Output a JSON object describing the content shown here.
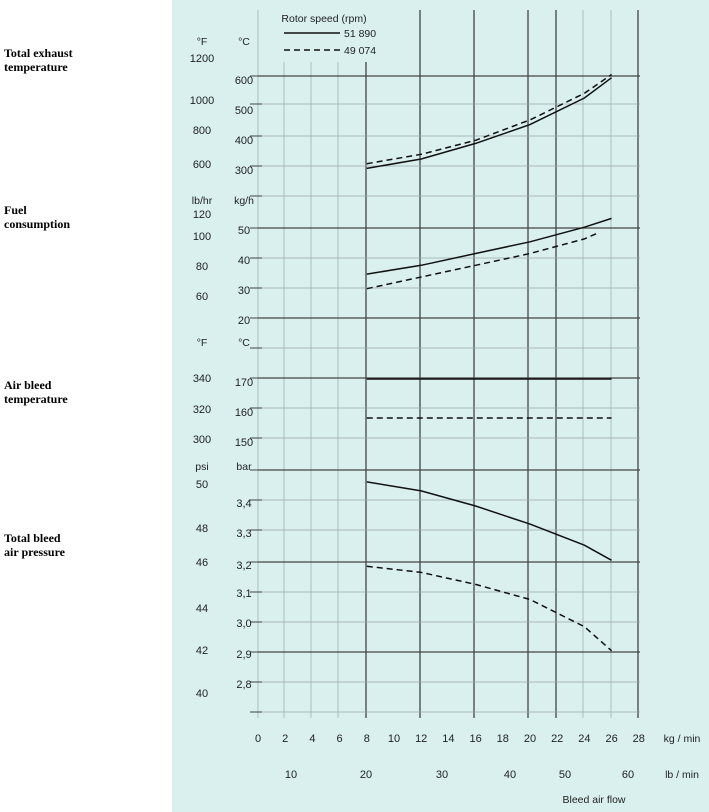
{
  "left_labels": [
    "Total exhaust\ntemperature",
    "Fuel\nconsumption",
    "Air bleed\ntemperature",
    "Total bleed\nair pressure"
  ],
  "colors": {
    "panel_bg": "#d9f0ef",
    "grid": "#444444",
    "grid_light": "#9aa8a8",
    "curve": "#111111"
  },
  "chart_data": {
    "type": "line",
    "legend": {
      "title": "Rotor speed (rpm)",
      "entries": [
        {
          "name": "51 890",
          "style": "solid"
        },
        {
          "name": "49 074",
          "style": "dashed"
        }
      ],
      "position": "top"
    },
    "x_axis": {
      "primary": {
        "unit": "kg / min",
        "ticks": [
          "0",
          "2",
          "4",
          "6",
          "8",
          "10",
          "12",
          "14",
          "16",
          "18",
          "20",
          "22",
          "24",
          "26",
          "28"
        ],
        "range": [
          0,
          28
        ]
      },
      "secondary": {
        "unit": "lb / min",
        "ticks": [
          "10",
          "20",
          "30",
          "40",
          "50",
          "60"
        ]
      },
      "label": "Bleed air flow"
    },
    "panels": [
      {
        "id": "exhaust",
        "units_left": "°F",
        "units_right": "°C",
        "ticks_left": [
          "1200",
          "1000",
          "800",
          "600"
        ],
        "ticks_right": [
          "600",
          "500",
          "400",
          "300"
        ],
        "ylim": [
          300,
          600
        ],
        "series": [
          {
            "name": "51 890",
            "style": "solid",
            "x": [
              8,
              12,
              16,
              20,
              24,
              26
            ],
            "y": [
              305,
              335,
              385,
              445,
              530,
              595
            ]
          },
          {
            "name": "49 074",
            "style": "dashed",
            "x": [
              8,
              12,
              16,
              20,
              24,
              26
            ],
            "y": [
              320,
              350,
              395,
              460,
              545,
              605
            ]
          }
        ]
      },
      {
        "id": "fuel",
        "units_left": "lb/hr",
        "units_right": "kg/h",
        "ticks_left": [
          "120",
          "100",
          "80",
          "60"
        ],
        "ticks_right": [
          "50",
          "40",
          "30",
          "20"
        ],
        "ylim": [
          20,
          60
        ],
        "series": [
          {
            "name": "51 890",
            "style": "solid",
            "x": [
              8,
              12,
              16,
              20,
              24,
              26
            ],
            "y": [
              35,
              38,
              42,
              46,
              51,
              54
            ]
          },
          {
            "name": "49 074",
            "style": "dashed",
            "x": [
              8,
              12,
              16,
              20,
              24,
              25
            ],
            "y": [
              30,
              34,
              38,
              42,
              47,
              49
            ]
          }
        ]
      },
      {
        "id": "airbleed",
        "units_left": "°F",
        "units_right": "°C",
        "ticks_left": [
          "340",
          "320",
          "300"
        ],
        "ticks_right": [
          "170",
          "160",
          "150"
        ],
        "ylim": [
          145,
          175
        ],
        "series": [
          {
            "name": "51 890",
            "style": "solid",
            "x": [
              8,
              26
            ],
            "y": [
              171,
              171
            ]
          },
          {
            "name": "49 074",
            "style": "dashed",
            "x": [
              8,
              26
            ],
            "y": [
              158,
              158
            ]
          }
        ]
      },
      {
        "id": "pressure",
        "units_left": "psi",
        "units_right": "bar",
        "ticks_left": [
          "50",
          "48",
          "46",
          "44",
          "42",
          "40"
        ],
        "ticks_right": [
          "3,4",
          "3,3",
          "3,2",
          "3,1",
          "3,0",
          "2,9",
          "2,8"
        ],
        "ylim": [
          2.75,
          3.5
        ],
        "series": [
          {
            "name": "51 890",
            "style": "solid",
            "x": [
              8,
              12,
              16,
              20,
              24,
              26
            ],
            "y": [
              3.47,
              3.44,
              3.39,
              3.33,
              3.26,
              3.21
            ]
          },
          {
            "name": "49 074",
            "style": "dashed",
            "x": [
              8,
              12,
              16,
              20,
              24,
              26
            ],
            "y": [
              3.19,
              3.17,
              3.13,
              3.08,
              2.99,
              2.91
            ]
          }
        ]
      }
    ]
  }
}
